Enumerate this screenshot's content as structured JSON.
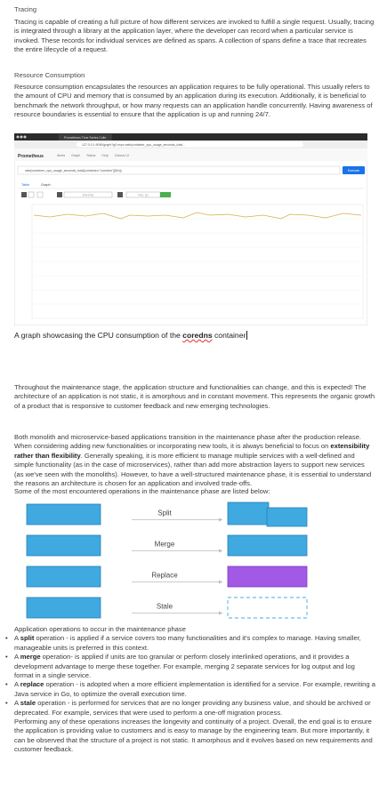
{
  "tracing": {
    "heading": "Tracing",
    "text": "Tracing is capable of creating a full picture of how different services are invoked to fulfill a single request. Usually, tracing is integrated through a library at the application layer, where the developer can record when a particular service is invoked. These records for individual services are defined as spans. A collection of spans define a trace that recreates the entire lifecycle of a request."
  },
  "resource": {
    "heading": "Resource Consumption",
    "text": "Resource consumption encapsulates the resources an application requires to be fully operational. This usually refers to the amount of CPU and memory that is consumed by an application during its execution. Additionally, it is beneficial to benchmark the network throughput, or how many requests can an application handle concurrently. Having awareness of resource boundaries is essential to ensure that the application is up and running 24/7."
  },
  "screenshot": {
    "tab": "Prometheus Time Series Colle",
    "url": "127.0.0.1:9090/graph?g0.expr=rate(container_cpu_usage_seconds_total...",
    "brand": "Prometheus",
    "nav": [
      "Alerts",
      "Graph",
      "Status",
      "Help",
      "Classic UI"
    ],
    "query": "rate(container_cpu_usage_seconds_total{container=\"coredns\"}[5m])",
    "execute": "Execute",
    "tabs": [
      "Table",
      "Graph"
    ],
    "end_time": "End time",
    "resolution": "Res. (s)"
  },
  "caption": {
    "before": "A graph showcasing the CPU consumption of the ",
    "term": "coredns",
    "after": " container"
  },
  "maintenance": {
    "p1": "Throughout the maintenance stage, the application structure and functionalities can change, and this is expected! The architecture of an application is not static, it is amorphous and in constant movement. This represents the organic growth of a product that is responsive to customer feedback and new emerging technologies.",
    "p2": {
      "before": "Both monolith and microservice-based applications transition in the maintenance phase after the production release. When considering adding new functionalities or incorporating new tools, it is always beneficial to focus on ",
      "bold": "extensibility rather than flexibility",
      "after": ". Generally speaking, it is more efficient to manage multiple services with a well-defined and simple functionality (as in the case of microservices), rather than add more abstraction layers to support new services (as we've seen with the monoliths). However, to have a well-structured maintenance phase, it is essential to understand the reasons an architecture is chosen for an application and involved trade-offs."
    },
    "p3": "Some of the most encountered operations in the maintenance phase are listed below:"
  },
  "diagram": {
    "operations": [
      "Split",
      "Merge",
      "Replace",
      "Stale"
    ]
  },
  "list": {
    "heading": "Application operations to occur in the maintenance phase",
    "items": [
      {
        "before": "A ",
        "term": "split",
        "after": " operation - is applied if a service covers too many functionalities and it's complex to manage. Having smaller, manageable units is preferred in this context."
      },
      {
        "before": "A ",
        "term": "merge",
        "after": " operation- is applied if units are too granular or perform closely interlinked operations, and it provides a development advantage to merge these together. For example, merging 2 separate services for log output and log format in a single service."
      },
      {
        "before": "A ",
        "term": "replace",
        "after": " operation - is adopted when a more efficient implementation is identified for a service. For example, rewriting a Java service in Go, to optimize the overall execution time."
      },
      {
        "before": "A ",
        "term": "stale",
        "after": " operation - is performed for services that are no longer providing any business value, and should be archived or deprecated. For example, services that were used to perform a one-off migration process."
      }
    ],
    "closing": "Performing any of these operations increases the longevity and continuity of a project. Overall, the end goal is to ensure the application is providing value to customers and is easy to manage by the engineering team. But more importantly, it can be observed that the structure of a project is not static. It amorphous and it evolves based on new requirements and customer feedback."
  }
}
